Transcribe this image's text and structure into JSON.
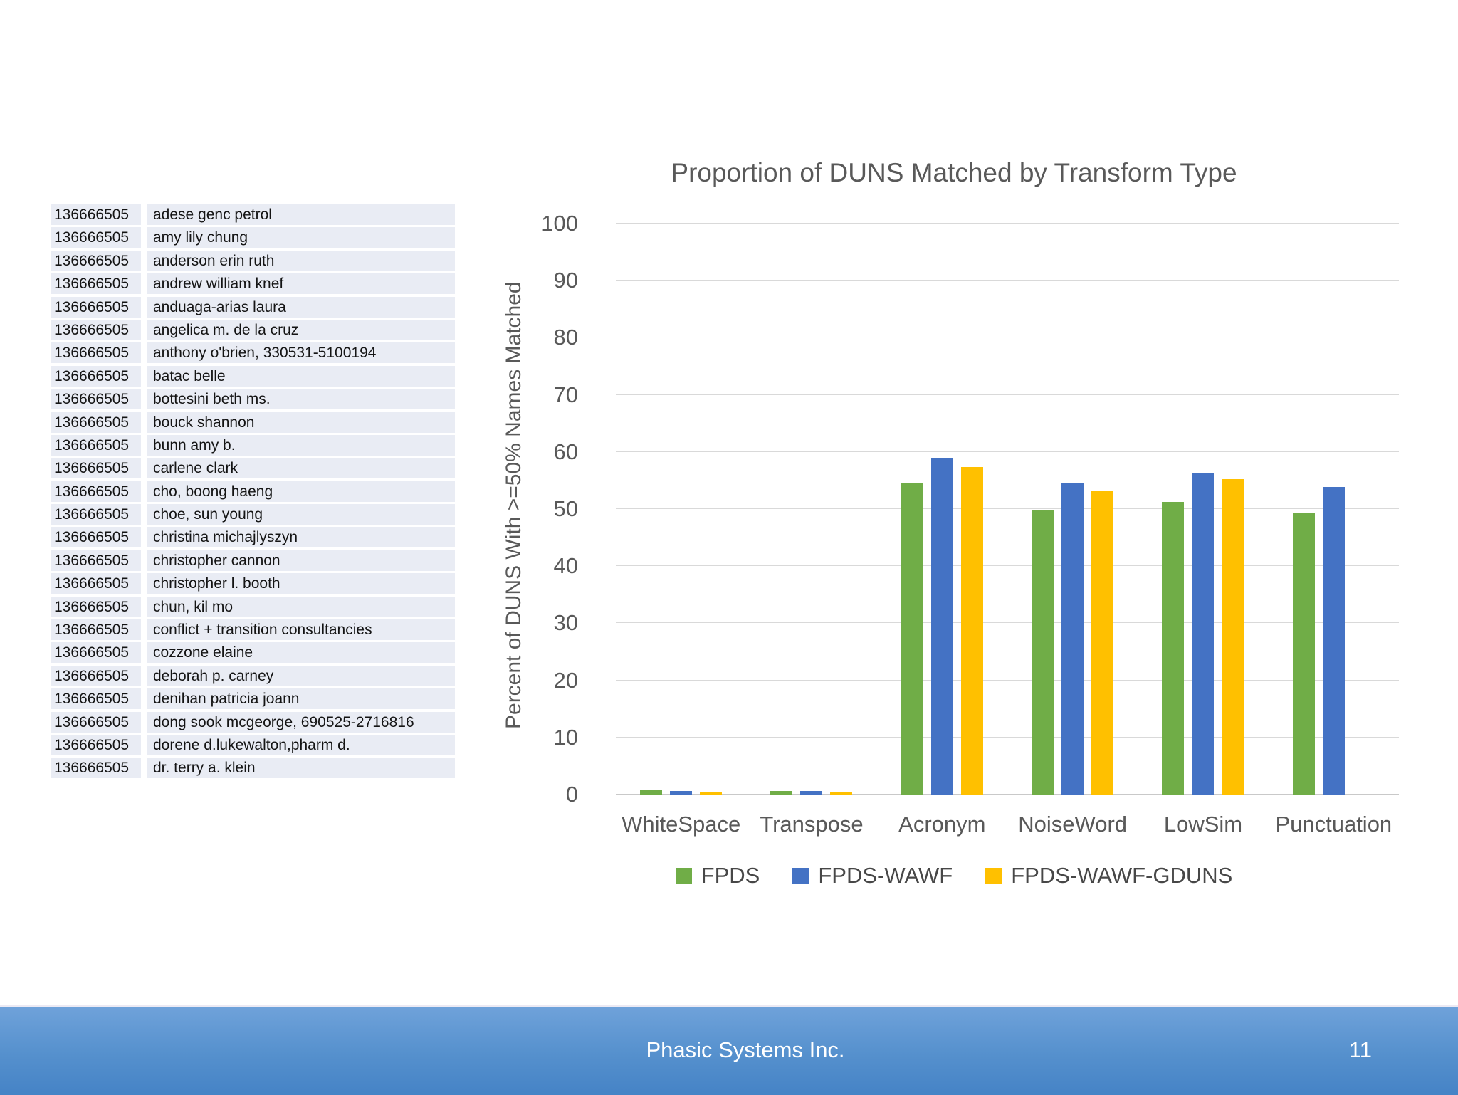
{
  "slide": {
    "footer": {
      "company": "Phasic Systems Inc.",
      "page_number": "11"
    }
  },
  "table": {
    "duns": "136666505",
    "rows": [
      "adese genc petrol",
      "amy lily chung",
      "anderson erin ruth",
      "andrew william knef",
      "anduaga-arias laura",
      "angelica m. de la cruz",
      "anthony o'brien, 330531-5100194",
      "batac belle",
      "bottesini beth ms.",
      "bouck shannon",
      "bunn amy b.",
      "carlene clark",
      "cho, boong haeng",
      "choe, sun young",
      "christina michajlyszyn",
      "christopher cannon",
      "christopher l. booth",
      "chun, kil mo",
      "conflict + transition consultancies",
      "cozzone elaine",
      "deborah p. carney",
      "denihan patricia joann",
      "dong sook mcgeorge, 690525-2716816",
      "dorene d.lukewalton,pharm d.",
      "dr. terry a. klein"
    ]
  },
  "chart_data": {
    "type": "bar",
    "title": "Proportion of DUNS Matched by Transform Type",
    "xlabel": "",
    "ylabel": "Percent of DUNS With >=50% Names Matched",
    "ylim": [
      0,
      100
    ],
    "ytick_step": 10,
    "grid": true,
    "legend_position": "bottom",
    "categories": [
      "WhiteSpace",
      "Transpose",
      "Acronym",
      "NoiseWord",
      "LowSim",
      "Punctuation"
    ],
    "series": [
      {
        "name": "FPDS",
        "color": "#70AD47",
        "values": [
          0.9,
          0.6,
          54.5,
          49.8,
          51.3,
          49.3
        ]
      },
      {
        "name": "FPDS-WAWF",
        "color": "#4472C4",
        "values": [
          0.6,
          0.6,
          59.0,
          54.5,
          56.3,
          53.9
        ]
      },
      {
        "name": "FPDS-WAWF-GDUNS",
        "color": "#FFC000",
        "values": [
          0.5,
          0.5,
          57.4,
          53.1,
          55.3,
          0
        ]
      }
    ]
  }
}
